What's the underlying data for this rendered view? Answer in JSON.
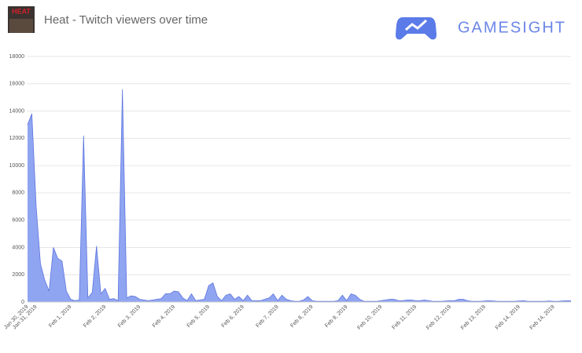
{
  "header": {
    "game_icon_text": "HEAT",
    "brand": "GAMESIGHT"
  },
  "chart_data": {
    "type": "area",
    "title": "Heat - Twitch viewers over time",
    "categories": [
      "Jan 30, 2019",
      null,
      "Jan 31, 2019",
      null,
      null,
      null,
      null,
      null,
      null,
      null,
      "Feb 1, 2019",
      null,
      null,
      null,
      null,
      null,
      null,
      null,
      "Feb 2, 2019",
      null,
      null,
      null,
      null,
      null,
      null,
      null,
      "Feb 3, 2019",
      null,
      null,
      null,
      null,
      null,
      null,
      null,
      "Feb 4, 2019",
      null,
      null,
      null,
      null,
      null,
      null,
      null,
      "Feb 5, 2019",
      null,
      null,
      null,
      null,
      null,
      null,
      null,
      "Feb 6, 2019",
      null,
      null,
      null,
      null,
      null,
      null,
      null,
      "Feb 7, 2019",
      null,
      null,
      null,
      null,
      null,
      null,
      null,
      "Feb 8, 2019",
      null,
      null,
      null,
      null,
      null,
      null,
      null,
      "Feb 9, 2019",
      null,
      null,
      null,
      null,
      null,
      null,
      null,
      "Feb 10, 2019",
      null,
      null,
      null,
      null,
      null,
      null,
      null,
      "Feb 11, 2019",
      null,
      null,
      null,
      null,
      null,
      null,
      null,
      "Feb 12, 2019",
      null,
      null,
      null,
      null,
      null,
      null,
      null,
      "Feb 13, 2019",
      null,
      null,
      null,
      null,
      null,
      null,
      null,
      "Feb 14, 2019",
      null,
      null,
      null,
      null,
      null,
      null,
      null,
      "Feb 14, 2019",
      null,
      null,
      null,
      null
    ],
    "values": [
      13000,
      13800,
      7000,
      2800,
      1600,
      800,
      4000,
      3200,
      3000,
      800,
      200,
      100,
      150,
      12200,
      300,
      700,
      4100,
      600,
      1000,
      200,
      250,
      100,
      15600,
      300,
      450,
      400,
      200,
      150,
      100,
      150,
      200,
      250,
      600,
      600,
      800,
      750,
      300,
      100,
      600,
      100,
      150,
      200,
      1200,
      1400,
      400,
      100,
      500,
      600,
      200,
      400,
      100,
      500,
      100,
      100,
      100,
      200,
      300,
      600,
      100,
      500,
      200,
      100,
      50,
      50,
      150,
      400,
      100,
      50,
      50,
      50,
      50,
      50,
      100,
      500,
      100,
      600,
      500,
      200,
      50,
      50,
      50,
      50,
      100,
      150,
      200,
      200,
      100,
      100,
      150,
      150,
      100,
      100,
      150,
      100,
      50,
      50,
      50,
      80,
      100,
      100,
      200,
      200,
      100,
      50,
      50,
      50,
      80,
      100,
      80,
      50,
      50,
      50,
      50,
      50,
      80,
      100,
      50,
      50,
      50,
      50,
      50,
      80,
      50,
      50,
      80,
      100,
      100
    ],
    "color": "#8aa0f0",
    "line_color": "#5d74df",
    "ylim": [
      0,
      18000
    ],
    "yticks": [
      0,
      2000,
      4000,
      6000,
      8000,
      10000,
      12000,
      14000,
      16000,
      18000
    ],
    "grid": true
  }
}
